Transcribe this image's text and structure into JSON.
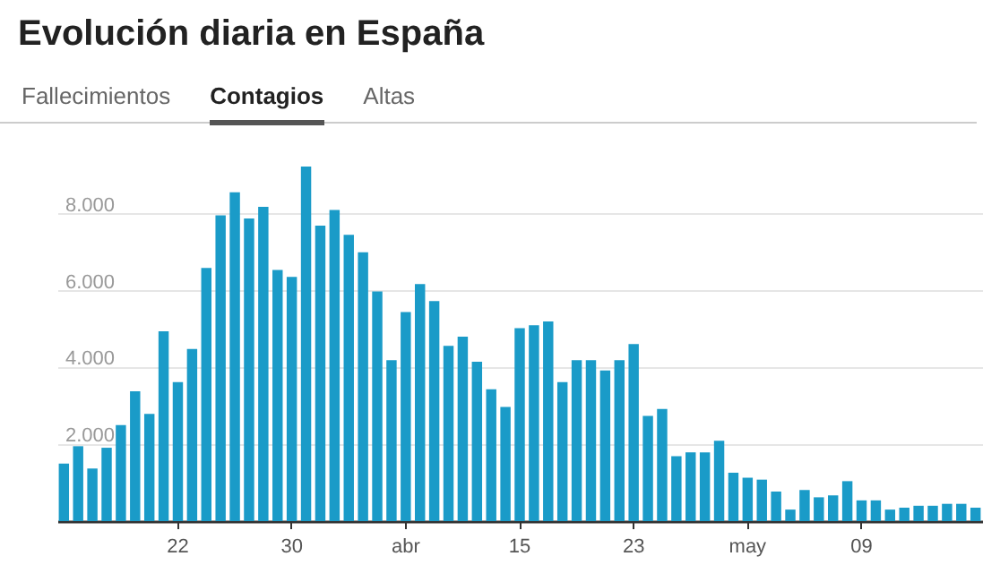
{
  "chart_data": {
    "type": "bar",
    "title": "Evolución diaria en España",
    "annotations": [
      "Fallecimientos",
      "Contagios",
      "Altas"
    ],
    "categories": [
      null,
      null,
      null,
      null,
      null,
      null,
      null,
      null,
      "22",
      null,
      null,
      null,
      null,
      null,
      null,
      null,
      "30",
      null,
      null,
      null,
      null,
      null,
      null,
      null,
      "abr",
      null,
      null,
      null,
      null,
      null,
      null,
      null,
      "15",
      null,
      null,
      null,
      null,
      null,
      null,
      null,
      "23",
      null,
      null,
      null,
      null,
      null,
      null,
      null,
      "may",
      null,
      null,
      null,
      null,
      null,
      null,
      null,
      "09",
      null,
      null,
      null,
      null,
      null,
      null,
      null,
      null
    ],
    "values": [
      1500,
      1950,
      1370,
      1910,
      2500,
      3380,
      2790,
      4940,
      3620,
      4480,
      6590,
      7960,
      8560,
      7880,
      8180,
      6540,
      6360,
      9230,
      7690,
      8100,
      7450,
      7000,
      5980,
      4190,
      5440,
      6170,
      5730,
      4560,
      4800,
      4150,
      3430,
      2970,
      5020,
      5100,
      5200,
      3620,
      4190,
      4190,
      3920,
      4190,
      4610,
      2740,
      2920,
      1690,
      1790,
      1790,
      2090,
      1260,
      1130,
      1080,
      770,
      300,
      810,
      620,
      670,
      1040,
      540,
      540,
      300,
      350,
      400,
      400,
      450,
      450,
      350
    ],
    "color": "#1a9bc8",
    "ylim": [
      0,
      9230
    ],
    "yticks": [
      {
        "value": 2000,
        "label": "2.000"
      },
      {
        "value": 4000,
        "label": "4.000"
      },
      {
        "value": 6000,
        "label": "6.000"
      },
      {
        "value": 8000,
        "label": "8.000"
      }
    ],
    "grid": "y"
  }
}
